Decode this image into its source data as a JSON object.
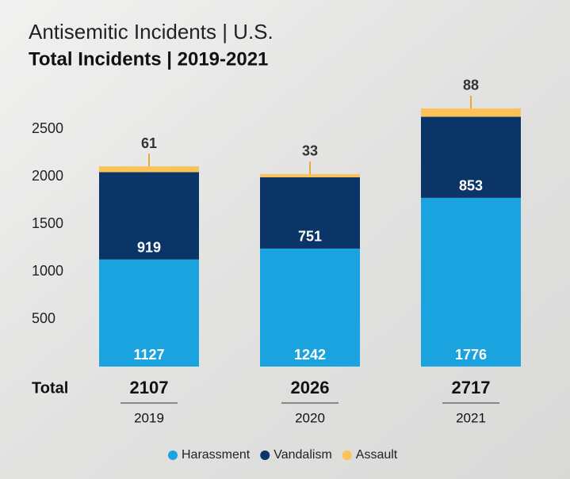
{
  "chart_data": {
    "type": "stacked_bar",
    "title": "Antisemitic Incidents | U.S.",
    "subtitle": "Total Incidents | 2019-2021",
    "categories": [
      "2019",
      "2020",
      "2021"
    ],
    "series": [
      {
        "name": "Harassment",
        "color": "#1ba3e0",
        "values": [
          1127,
          1242,
          1776
        ]
      },
      {
        "name": "Vandalism",
        "color": "#0b3567",
        "values": [
          919,
          751,
          853
        ]
      },
      {
        "name": "Assault",
        "color": "#fbc25a",
        "values": [
          61,
          33,
          88
        ]
      }
    ],
    "total_label": "Total",
    "totals": [
      2107,
      2026,
      2717
    ],
    "ylim": [
      0,
      2800
    ],
    "yticks": [
      500,
      1000,
      1500,
      2000,
      2500
    ],
    "grid": false,
    "legend": "bottom"
  }
}
